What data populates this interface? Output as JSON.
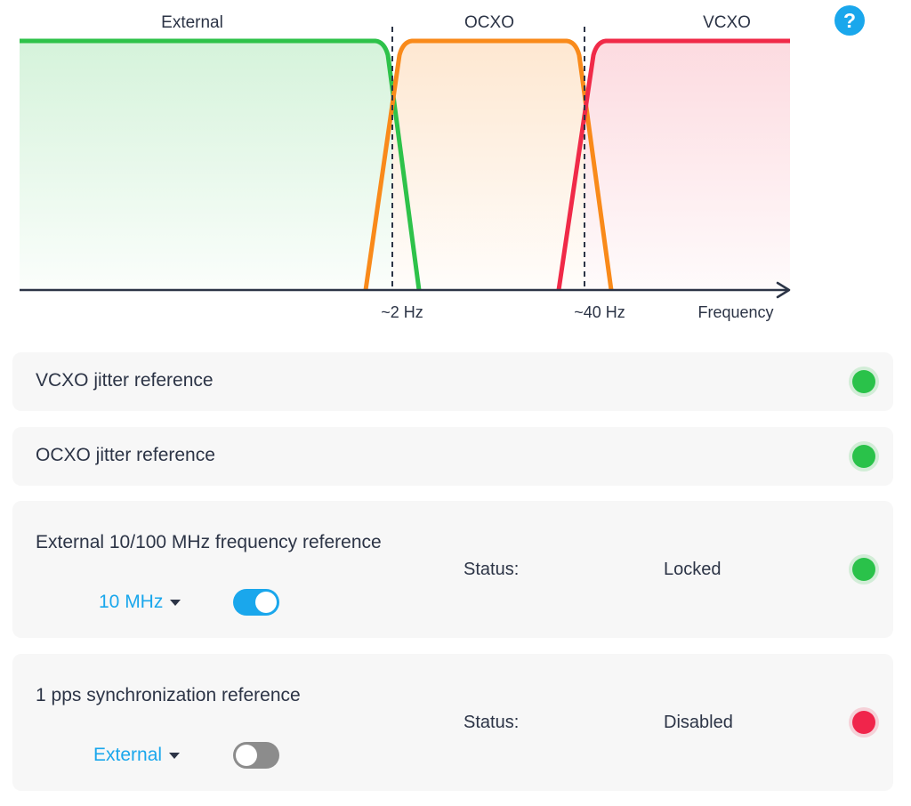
{
  "diagram": {
    "regions": [
      {
        "label": "External",
        "color": "#2ec24a"
      },
      {
        "label": "OCXO",
        "color": "#f98a1a"
      },
      {
        "label": "VCXO",
        "color": "#f02a48"
      }
    ],
    "markers": [
      "~2 Hz",
      "~40 Hz"
    ],
    "axis_label": "Frequency"
  },
  "help": {
    "glyph": "?",
    "icon": "question-icon"
  },
  "cards": [
    {
      "title": "VCXO jitter reference",
      "led": "green"
    },
    {
      "title": "OCXO jitter reference",
      "led": "green"
    },
    {
      "title": "External 10/100 MHz frequency reference",
      "dropdown": "10 MHz",
      "toggle_on": true,
      "status_label": "Status:",
      "status_value": "Locked",
      "led": "green"
    },
    {
      "title": "1 pps synchronization reference",
      "dropdown": "External",
      "toggle_on": false,
      "status_label": "Status:",
      "status_value": "Disabled",
      "led": "red"
    }
  ],
  "colors": {
    "accent": "#1aa7ec",
    "status_ok": "#2ac24a",
    "status_error": "#f0254b"
  }
}
